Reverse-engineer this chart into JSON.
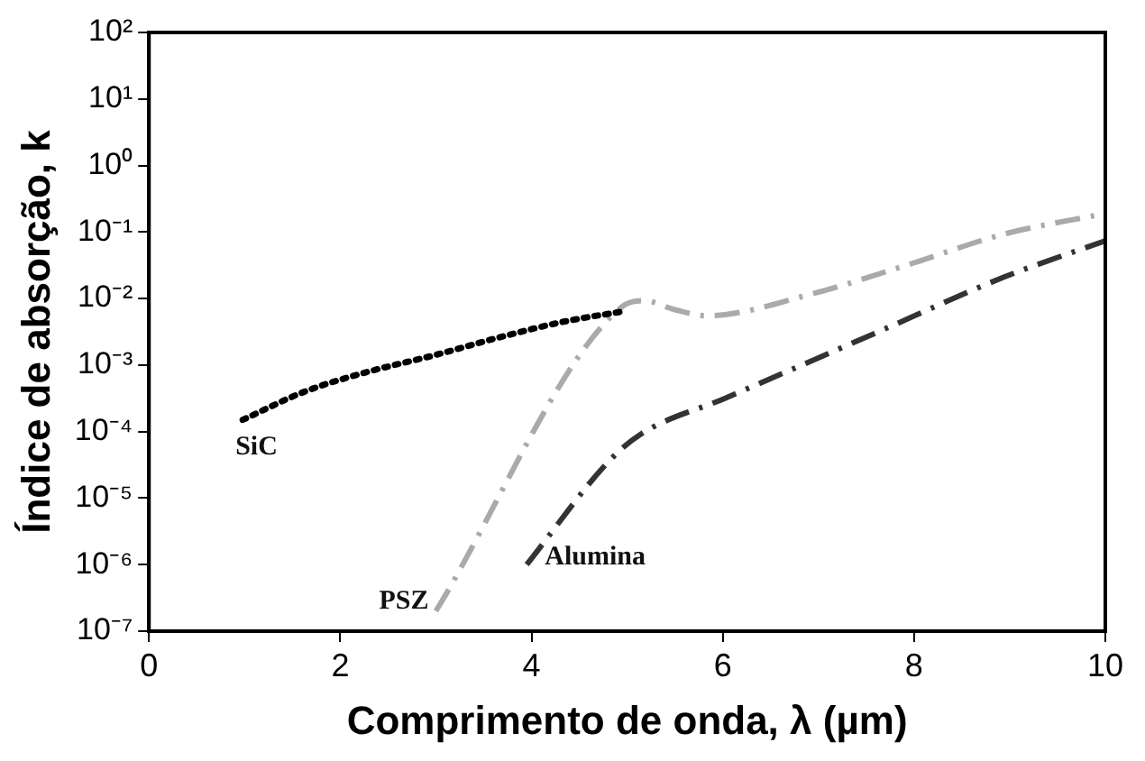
{
  "chart_data": {
    "type": "line",
    "xlabel": "Comprimento de onda, λ (µm)",
    "ylabel": "Índice de absorção, k",
    "log": "y",
    "grid": false,
    "legend": false,
    "marker": "none",
    "xlim": [
      0,
      10
    ],
    "xticks": [
      0,
      2,
      4,
      6,
      8,
      10
    ],
    "ylim": [
      1e-07,
      100
    ],
    "yticks": [
      {
        "value": 1e-07,
        "label": "10⁻⁷"
      },
      {
        "value": 1e-06,
        "label": "10⁻⁶"
      },
      {
        "value": 1e-05,
        "label": "10⁻⁵"
      },
      {
        "value": 0.0001,
        "label": "10⁻⁴"
      },
      {
        "value": 0.001,
        "label": "10⁻³"
      },
      {
        "value": 0.01,
        "label": "10⁻²"
      },
      {
        "value": 0.1,
        "label": "10⁻¹"
      },
      {
        "value": 1,
        "label": "10⁰"
      },
      {
        "value": 10,
        "label": "10¹"
      },
      {
        "value": 100,
        "label": "10²"
      }
    ],
    "series": [
      {
        "name": "SiC",
        "color": "#000000",
        "line_style": "dotted",
        "x": [
          0.98,
          1.63,
          2.3,
          2.98,
          3.66,
          4.34,
          4.98
        ],
        "values": [
          0.00015,
          0.0004,
          0.0008,
          0.0014,
          0.0026,
          0.0045,
          0.0065
        ]
      },
      {
        "name": "PSZ",
        "color": "#aaaaaa",
        "line_style": "dashed",
        "x": [
          3,
          4.95,
          5.18,
          5.5,
          5.83,
          6.91,
          7.93,
          8.94,
          10
        ],
        "values": [
          2e-07,
          0.0076,
          0.0093,
          0.0068,
          0.0055,
          0.0115,
          0.032,
          0.093,
          0.19
        ]
      },
      {
        "name": "Alumina",
        "color": "#333333",
        "line_style": "dashed",
        "x": [
          3.95,
          4.81,
          5.15,
          6.03,
          7.59,
          8.94,
          10
        ],
        "values": [
          1e-06,
          3.6e-05,
          9.3e-05,
          0.00032,
          0.003,
          0.021,
          0.074
        ]
      }
    ]
  }
}
